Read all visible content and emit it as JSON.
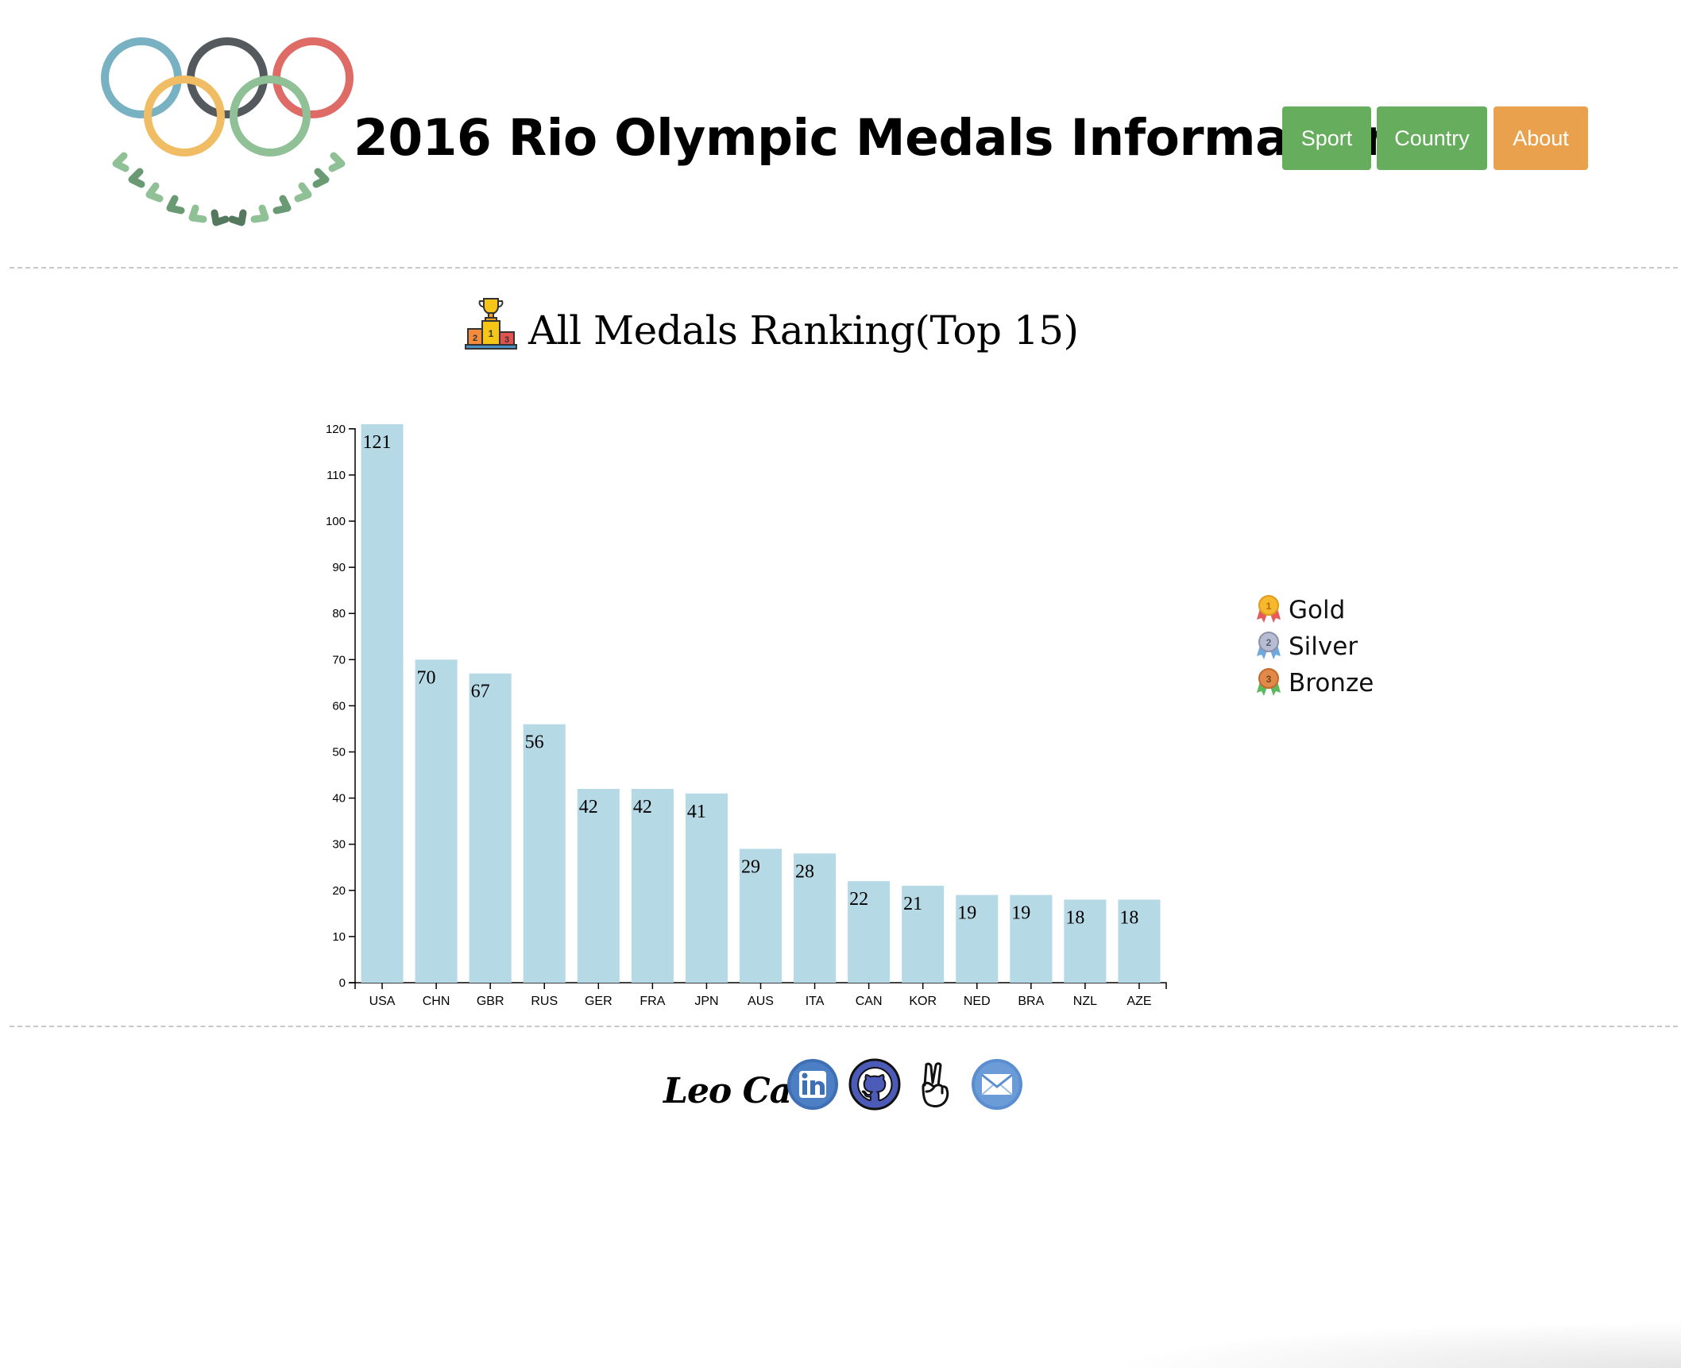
{
  "header": {
    "title": "2016 Rio Olympic Medals Information",
    "logo": "olympic-rings-laurel-logo",
    "nav": [
      {
        "label": "Sport",
        "color": "#66ad5d"
      },
      {
        "label": "Country",
        "color": "#66ad5d"
      },
      {
        "label": "About",
        "color": "#eaa14d"
      }
    ]
  },
  "main": {
    "chart_title": "All Medals Ranking(Top 15)",
    "chart_title_icon": "podium-trophy-icon",
    "legend": [
      {
        "label": "Gold",
        "icon": "gold-medal-icon"
      },
      {
        "label": "Silver",
        "icon": "silver-medal-icon"
      },
      {
        "label": "Bronze",
        "icon": "bronze-medal-icon"
      }
    ]
  },
  "chart_data": {
    "type": "bar",
    "title": "All Medals Ranking(Top 15)",
    "categories": [
      "USA",
      "CHN",
      "GBR",
      "RUS",
      "GER",
      "FRA",
      "JPN",
      "AUS",
      "ITA",
      "CAN",
      "KOR",
      "NED",
      "BRA",
      "NZL",
      "AZE"
    ],
    "values": [
      121,
      70,
      67,
      56,
      42,
      42,
      41,
      29,
      28,
      22,
      21,
      19,
      19,
      18,
      18
    ],
    "ylim": [
      0,
      121
    ],
    "yticks": [
      0,
      10,
      20,
      30,
      40,
      50,
      60,
      70,
      80,
      90,
      100,
      110,
      120
    ],
    "bar_color": "#b6d9e6",
    "grid": false,
    "legend_placement": "right"
  },
  "footer": {
    "author": "Leo Cao",
    "icons": [
      "linkedin-icon",
      "github-icon",
      "peace-hand-icon",
      "email-icon"
    ]
  }
}
